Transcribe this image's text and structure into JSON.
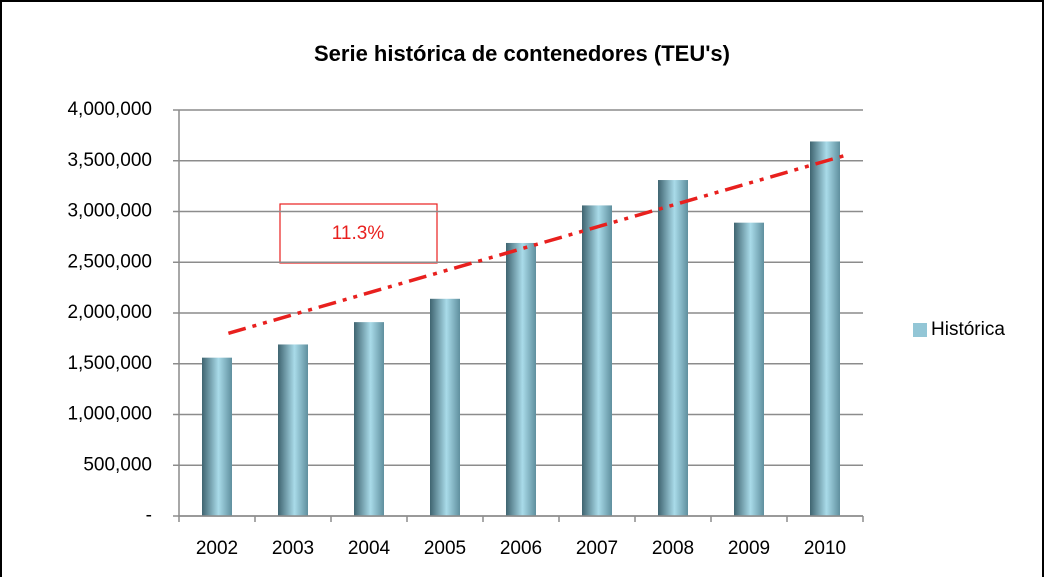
{
  "chart_data": {
    "type": "bar",
    "title": "Serie histórica de contenedores (TEU's)",
    "categories": [
      "2002",
      "2003",
      "2004",
      "2005",
      "2006",
      "2007",
      "2008",
      "2009",
      "2010"
    ],
    "series": [
      {
        "name": "Histórica",
        "color": "#93c6d6",
        "values": [
          1560000,
          1690000,
          1910000,
          2140000,
          2690000,
          3060000,
          3310000,
          2890000,
          3690000
        ]
      }
    ],
    "ylim": [
      0,
      4000000
    ],
    "yticks": [
      {
        "value": 0,
        "label": "-"
      },
      {
        "value": 500000,
        "label": "500,000"
      },
      {
        "value": 1000000,
        "label": "1,000,000"
      },
      {
        "value": 1500000,
        "label": "1,500,000"
      },
      {
        "value": 2000000,
        "label": "2,000,000"
      },
      {
        "value": 2500000,
        "label": "2,500,000"
      },
      {
        "value": 3000000,
        "label": "3,000,000"
      },
      {
        "value": 3500000,
        "label": "3,500,000"
      },
      {
        "value": 4000000,
        "label": "4,000,000"
      }
    ],
    "grid": true,
    "legend": "right",
    "trendline": {
      "start": 1800000,
      "end": 3560000,
      "color": "#e8201e"
    },
    "annotation": "11.3%"
  }
}
